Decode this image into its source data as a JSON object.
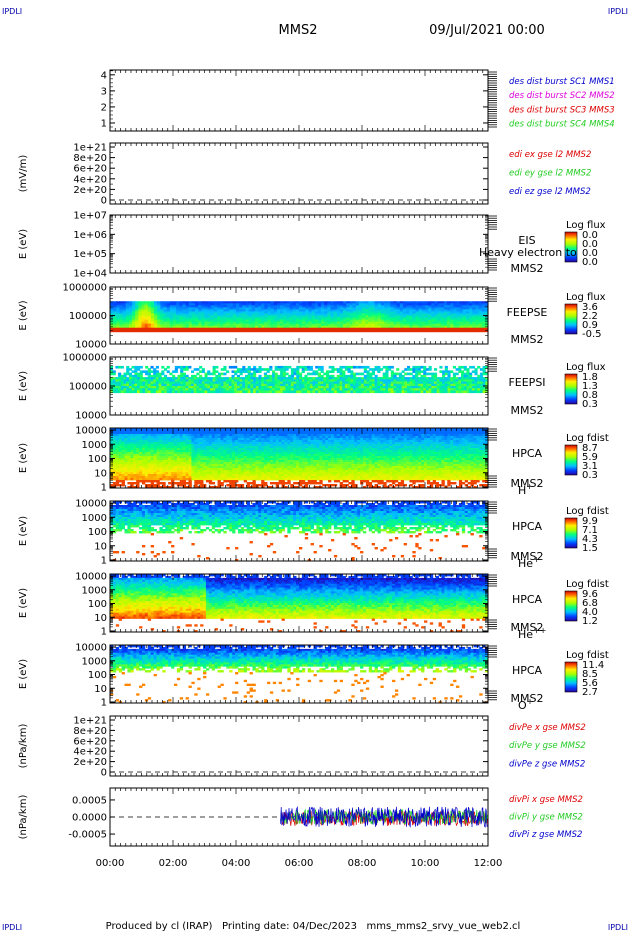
{
  "header": {
    "corner_left": "IPDLI",
    "corner_right": "IPDLI",
    "title": "MMS2",
    "date": "09/Jul/2021 00:00"
  },
  "footer": {
    "corner_left": "IPDLI",
    "corner_right": "IPDLI",
    "text": "Produced by cl (IRAP)   Printing date: 04/Dec/2023   mms_mms2_srvy_vue_web2.cl"
  },
  "colors": {
    "frame": "#000000",
    "red": "#dd0000",
    "green": "#22cc22",
    "blue": "#0000cc",
    "magenta": "#dd00dd",
    "corner": "#0000aa"
  },
  "chart_data": [
    {
      "name": "panel1",
      "type": "line",
      "xlim": [
        "00:00",
        "12:00"
      ],
      "yticks": [
        "4",
        "3",
        "2",
        "1"
      ],
      "ylim": [
        0.5,
        4.3
      ],
      "ylabel": "",
      "legend": [
        {
          "text": "des dist burst SC1 MMS1",
          "color": "#0000cc"
        },
        {
          "text": "des dist burst SC2 MMS2",
          "color": "#dd00dd"
        },
        {
          "text": "des dist burst SC3 MMS3",
          "color": "#dd0000"
        },
        {
          "text": "des dist burst SC4 MMS4",
          "color": "#22cc22"
        }
      ]
    },
    {
      "name": "panel2",
      "type": "line",
      "yticks": [
        "1e+21",
        "8e+20",
        "6e+20",
        "4e+20",
        "2e+20",
        "0"
      ],
      "ylabel": "(mV/m)",
      "legend": [
        {
          "text": "edi ex gse l2 MMS2",
          "color": "#dd0000"
        },
        {
          "text": "edi ey gse l2 MMS2",
          "color": "#22cc22"
        },
        {
          "text": "edi ez gse l2 MMS2",
          "color": "#0000cc"
        }
      ]
    },
    {
      "name": "panel3",
      "type": "heatmap",
      "yticks": [
        "1e+07",
        "1e+06",
        "1e+05",
        "1e+04"
      ],
      "ylabel": "E (eV)",
      "instrument": [
        "EIS",
        "MMS2"
      ],
      "overlay_text": "Heavy electron to",
      "colorbar": {
        "title": "Log flux",
        "labels": [
          "0.0",
          "0.0",
          "0.0",
          "0.0"
        ]
      }
    },
    {
      "name": "panel4",
      "type": "heatmap",
      "yticks": [
        "1000000",
        "100000",
        "10000"
      ],
      "ylabel": "E (eV)",
      "instrument": [
        "FEEPSE",
        "MMS2"
      ],
      "colorbar": {
        "title": "Log flux",
        "labels": [
          "3.6",
          "2.2",
          "0.9",
          "-0.5"
        ]
      }
    },
    {
      "name": "panel5",
      "type": "heatmap",
      "yticks": [
        "1000000",
        "100000",
        "10000"
      ],
      "ylabel": "E (eV)",
      "instrument": [
        "FEEPSI",
        "MMS2"
      ],
      "colorbar": {
        "title": "Log flux",
        "labels": [
          "1.8",
          "1.3",
          "0.8",
          "0.3"
        ]
      }
    },
    {
      "name": "panel6",
      "type": "heatmap",
      "yticks": [
        "10000",
        "1000",
        "100",
        "10",
        "1"
      ],
      "ylabel": "E (eV)",
      "instrument": [
        "HPCA",
        "MMS2"
      ],
      "species": "H",
      "species_sup": "+",
      "colorbar": {
        "title": "Log fdist",
        "labels": [
          "8.7",
          "5.9",
          "3.1",
          "0.3"
        ]
      }
    },
    {
      "name": "panel7",
      "type": "heatmap",
      "yticks": [
        "10000",
        "1000",
        "100",
        "10",
        "1"
      ],
      "ylabel": "E (eV)",
      "instrument": [
        "HPCA",
        "MMS2"
      ],
      "species": "He",
      "species_sup": "+",
      "colorbar": {
        "title": "Log fdist",
        "labels": [
          "9.9",
          "7.1",
          "4.3",
          "1.5"
        ]
      }
    },
    {
      "name": "panel8",
      "type": "heatmap",
      "yticks": [
        "10000",
        "1000",
        "100",
        "10",
        "1"
      ],
      "ylabel": "E (eV)",
      "instrument": [
        "HPCA",
        "MMS2"
      ],
      "species": "He",
      "species_sup": "++",
      "colorbar": {
        "title": "Log fdist",
        "labels": [
          "9.6",
          "6.8",
          "4.0",
          "1.2"
        ]
      }
    },
    {
      "name": "panel9",
      "type": "heatmap",
      "yticks": [
        "10000",
        "1000",
        "100",
        "10",
        "1"
      ],
      "ylabel": "E (eV)",
      "instrument": [
        "HPCA",
        "MMS2"
      ],
      "species": "O",
      "species_sup": "+",
      "colorbar": {
        "title": "Log fdist",
        "labels": [
          "11.4",
          "8.5",
          "5.6",
          "2.7"
        ]
      }
    },
    {
      "name": "panel10",
      "type": "line",
      "yticks": [
        "1e+21",
        "8e+20",
        "6e+20",
        "4e+20",
        "2e+20",
        "0"
      ],
      "ylabel": "(nPa/km)",
      "legend": [
        {
          "text": "divPe x gse MMS2",
          "color": "#dd0000"
        },
        {
          "text": "divPe y gse MMS2",
          "color": "#22cc22"
        },
        {
          "text": "divPe z gse MMS2",
          "color": "#0000cc"
        }
      ]
    },
    {
      "name": "panel11",
      "type": "line",
      "yticks": [
        "0.0005",
        "0.0000",
        "-0.0005"
      ],
      "ylim": [
        -0.00085,
        0.00085
      ],
      "ylabel": "(nPa/km)",
      "data_start": "05:25",
      "legend": [
        {
          "text": "divPi x gse MMS2",
          "color": "#dd0000"
        },
        {
          "text": "divPi y gse MMS2",
          "color": "#22cc22"
        },
        {
          "text": "divPi z gse MMS2",
          "color": "#0000cc"
        }
      ]
    }
  ],
  "xaxis": {
    "ticks": [
      "00:00",
      "02:00",
      "04:00",
      "06:00",
      "08:00",
      "10:00",
      "12:00"
    ]
  }
}
